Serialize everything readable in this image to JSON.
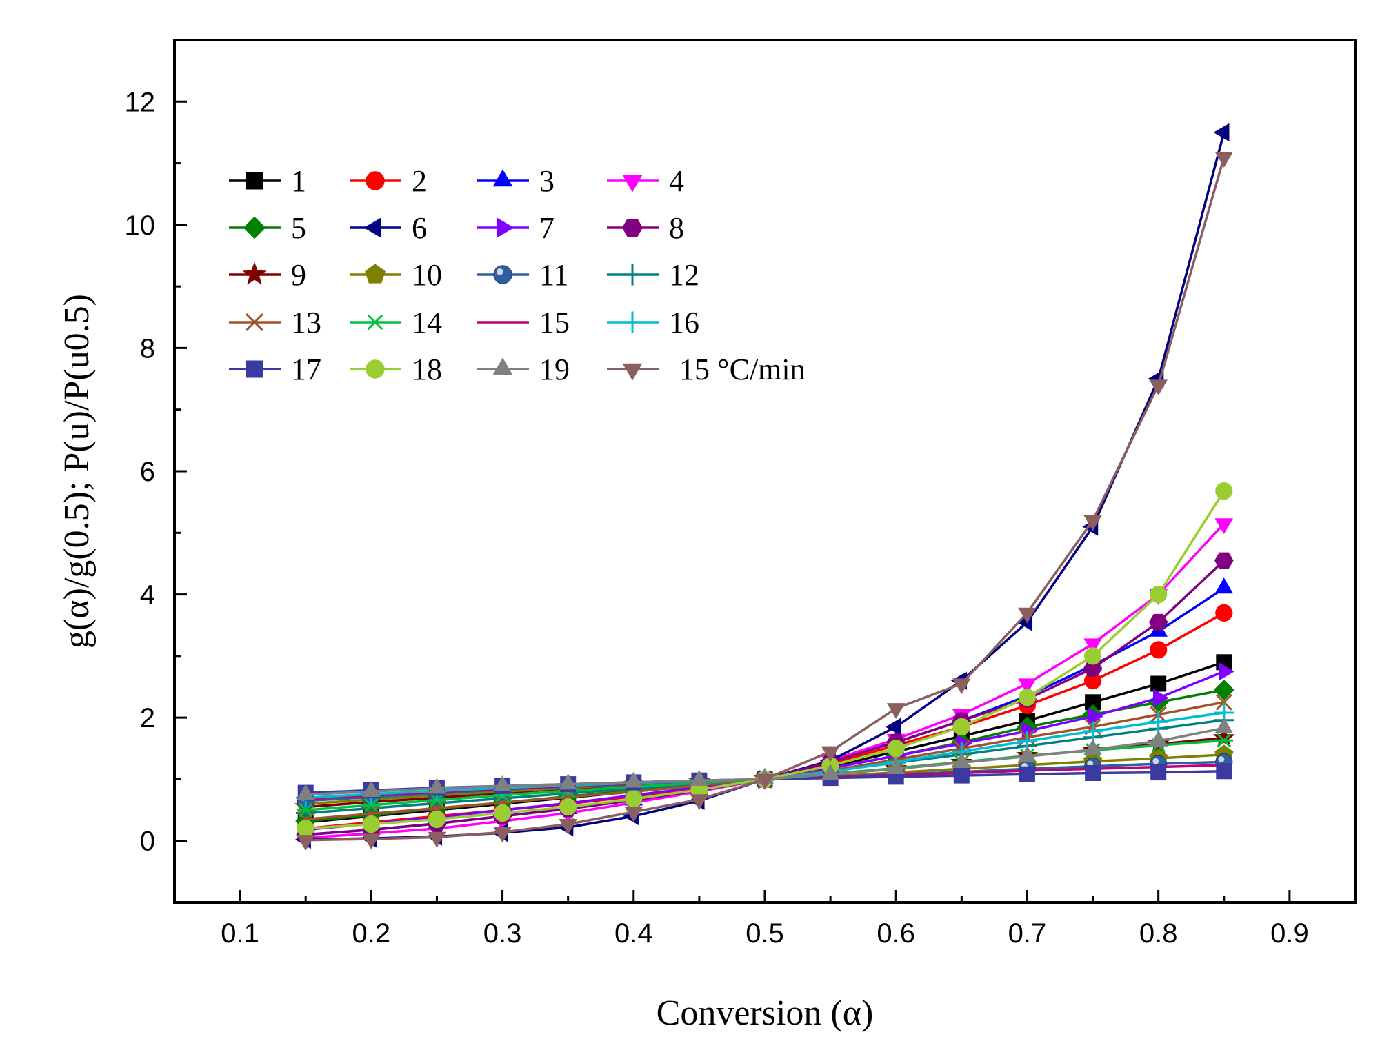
{
  "chart_data": {
    "type": "line",
    "title": "",
    "xlabel": "Conversion (α)",
    "ylabel": "g(α)/g(0.5); P(u)/P(u0.5)",
    "xlim": [
      0.05,
      0.95
    ],
    "ylim": [
      -1,
      13
    ],
    "xticks": [
      0.1,
      0.2,
      0.3,
      0.4,
      0.5,
      0.6,
      0.7,
      0.8,
      0.9
    ],
    "xtick_labels": [
      "0.1",
      "0.2",
      "0.3",
      "0.4",
      "0.5",
      "0.6",
      "0.7",
      "0.8",
      "0.9"
    ],
    "yticks": [
      0,
      2,
      4,
      6,
      8,
      10,
      12
    ],
    "ytick_labels": [
      "0",
      "2",
      "4",
      "6",
      "8",
      "10",
      "12"
    ],
    "grid": false,
    "legend_position": "top-left",
    "x": [
      0.15,
      0.2,
      0.25,
      0.3,
      0.35,
      0.4,
      0.45,
      0.5,
      0.55,
      0.6,
      0.65,
      0.7,
      0.75,
      0.8,
      0.85
    ],
    "series": [
      {
        "name": "1",
        "color": "#000000",
        "marker": "square",
        "values": [
          0.3,
          0.4,
          0.5,
          0.6,
          0.7,
          0.8,
          0.9,
          1.0,
          1.2,
          1.45,
          1.7,
          1.95,
          2.25,
          2.55,
          2.9
        ]
      },
      {
        "name": "2",
        "color": "#ff0000",
        "marker": "circle",
        "values": [
          0.2,
          0.3,
          0.4,
          0.5,
          0.6,
          0.72,
          0.86,
          1.0,
          1.25,
          1.55,
          1.85,
          2.2,
          2.6,
          3.1,
          3.7
        ]
      },
      {
        "name": "3",
        "color": "#0000ff",
        "marker": "triangle-up",
        "values": [
          0.1,
          0.18,
          0.28,
          0.4,
          0.52,
          0.66,
          0.82,
          1.0,
          1.3,
          1.6,
          1.95,
          2.35,
          2.85,
          3.4,
          4.1
        ]
      },
      {
        "name": "4",
        "color": "#ff00ff",
        "marker": "triangle-down",
        "values": [
          0.05,
          0.12,
          0.2,
          0.32,
          0.45,
          0.62,
          0.8,
          1.0,
          1.3,
          1.65,
          2.05,
          2.55,
          3.2,
          4.0,
          5.15
        ]
      },
      {
        "name": "5",
        "color": "#008000",
        "marker": "diamond",
        "values": [
          0.32,
          0.42,
          0.52,
          0.62,
          0.72,
          0.82,
          0.91,
          1.0,
          1.18,
          1.38,
          1.6,
          1.85,
          2.05,
          2.25,
          2.45
        ]
      },
      {
        "name": "6",
        "color": "#000080",
        "marker": "triangle-left",
        "values": [
          0.02,
          0.04,
          0.07,
          0.13,
          0.22,
          0.4,
          0.65,
          1.0,
          1.3,
          1.85,
          2.6,
          3.55,
          5.1,
          7.5,
          11.5
        ]
      },
      {
        "name": "7",
        "color": "#8000ff",
        "marker": "triangle-right",
        "values": [
          0.18,
          0.28,
          0.38,
          0.5,
          0.61,
          0.74,
          0.87,
          1.0,
          1.18,
          1.38,
          1.58,
          1.78,
          2.02,
          2.32,
          2.75
        ]
      },
      {
        "name": "8",
        "color": "#800080",
        "marker": "hexagon",
        "values": [
          0.1,
          0.18,
          0.28,
          0.4,
          0.52,
          0.66,
          0.82,
          1.0,
          1.28,
          1.6,
          1.95,
          2.3,
          2.8,
          3.55,
          4.55
        ]
      },
      {
        "name": "9",
        "color": "#800000",
        "marker": "star",
        "values": [
          0.55,
          0.63,
          0.7,
          0.78,
          0.85,
          0.91,
          0.96,
          1.0,
          1.08,
          1.17,
          1.27,
          1.38,
          1.47,
          1.57,
          1.67
        ]
      },
      {
        "name": "10",
        "color": "#808000",
        "marker": "pentagon",
        "values": [
          0.6,
          0.67,
          0.74,
          0.8,
          0.86,
          0.92,
          0.96,
          1.0,
          1.05,
          1.11,
          1.17,
          1.23,
          1.29,
          1.34,
          1.4
        ]
      },
      {
        "name": "11",
        "color": "#2f5f9f",
        "marker": "sphere",
        "values": [
          0.65,
          0.71,
          0.77,
          0.83,
          0.88,
          0.92,
          0.96,
          1.0,
          1.04,
          1.08,
          1.12,
          1.17,
          1.21,
          1.25,
          1.28
        ]
      },
      {
        "name": "12",
        "color": "#008080",
        "marker": "plus",
        "values": [
          0.45,
          0.53,
          0.61,
          0.69,
          0.77,
          0.85,
          0.92,
          1.0,
          1.13,
          1.27,
          1.4,
          1.54,
          1.68,
          1.82,
          1.96
        ]
      },
      {
        "name": "13",
        "color": "#a0522d",
        "marker": "x",
        "values": [
          0.35,
          0.44,
          0.53,
          0.62,
          0.71,
          0.8,
          0.9,
          1.0,
          1.14,
          1.32,
          1.5,
          1.68,
          1.85,
          2.05,
          2.25
        ]
      },
      {
        "name": "14",
        "color": "#00c040",
        "marker": "asterisk",
        "values": [
          0.5,
          0.58,
          0.66,
          0.74,
          0.81,
          0.88,
          0.94,
          1.0,
          1.09,
          1.18,
          1.28,
          1.38,
          1.47,
          1.55,
          1.63
        ]
      },
      {
        "name": "15",
        "color": "#c0007a",
        "marker": "dash",
        "values": [
          0.68,
          0.74,
          0.79,
          0.84,
          0.89,
          0.93,
          0.97,
          1.0,
          1.03,
          1.07,
          1.1,
          1.14,
          1.17,
          1.2,
          1.23
        ]
      },
      {
        "name": "16",
        "color": "#00bcd4",
        "marker": "plus",
        "values": [
          0.7,
          0.76,
          0.81,
          0.86,
          0.9,
          0.94,
          0.97,
          1.0,
          1.12,
          1.28,
          1.45,
          1.62,
          1.78,
          1.93,
          2.08
        ]
      },
      {
        "name": "17",
        "color": "#3a3aa0",
        "marker": "square",
        "values": [
          0.78,
          0.82,
          0.86,
          0.89,
          0.92,
          0.95,
          0.98,
          1.0,
          1.02,
          1.04,
          1.06,
          1.08,
          1.1,
          1.11,
          1.13
        ]
      },
      {
        "name": "18",
        "color": "#9acd32",
        "marker": "circle",
        "values": [
          0.2,
          0.27,
          0.35,
          0.45,
          0.55,
          0.68,
          0.83,
          1.0,
          1.22,
          1.5,
          1.85,
          2.33,
          3.0,
          4.0,
          5.68
        ]
      },
      {
        "name": "19",
        "color": "#808080",
        "marker": "triangle-up",
        "values": [
          0.75,
          0.8,
          0.85,
          0.89,
          0.92,
          0.95,
          0.98,
          1.0,
          1.08,
          1.17,
          1.27,
          1.37,
          1.48,
          1.62,
          1.83
        ]
      },
      {
        "name": "15 °C/min",
        "color": "#8b5f5f",
        "marker": "triangle-down",
        "values": [
          0.01,
          0.03,
          0.06,
          0.14,
          0.27,
          0.47,
          0.67,
          1.0,
          1.45,
          2.15,
          2.55,
          3.7,
          5.2,
          7.4,
          11.1
        ]
      }
    ]
  }
}
